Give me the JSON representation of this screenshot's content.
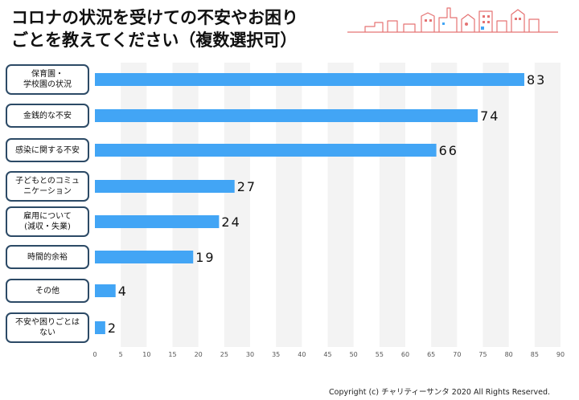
{
  "title": {
    "line1": "コロナの状況を受けての不安やお困り",
    "line2": "ごとを教えてください（複数選択可）"
  },
  "copyright": "Copyright (c) チャリティーサンタ 2020 All Rights Reserved.",
  "colors": {
    "bar": "#42a5f5",
    "box_border": "#2c4a66",
    "grid_band": "#f3f3f3",
    "skyline": "#e57373"
  },
  "decoration": {
    "icon": "city-skyline-icon"
  },
  "chart_data": {
    "type": "bar",
    "orientation": "horizontal",
    "title": "コロナの状況を受けての不安やお困りごとを教えてください（複数選択可）",
    "categories": [
      [
        "保育園・",
        "学校園の状況"
      ],
      [
        "金銭的な不安"
      ],
      [
        "感染に関する不安"
      ],
      [
        "子どもとのコミュ",
        "ニケーション"
      ],
      [
        "雇用について",
        "(減収・失業)"
      ],
      [
        "時間的余裕"
      ],
      [
        "その他"
      ],
      [
        "不安や困りごとは",
        "ない"
      ]
    ],
    "values": [
      83,
      74,
      66,
      27,
      24,
      19,
      4,
      2
    ],
    "value_labels": [
      "83",
      "74",
      "66",
      "27",
      "24",
      "19",
      "4",
      "2"
    ],
    "xlim": [
      0,
      90
    ],
    "xticks": [
      "0",
      "5",
      "10",
      "15",
      "20",
      "25",
      "30",
      "35",
      "40",
      "45",
      "50",
      "55",
      "60",
      "65",
      "70",
      "75",
      "80",
      "85",
      "90"
    ],
    "grid": "alternating vertical bands",
    "legend": "none"
  }
}
